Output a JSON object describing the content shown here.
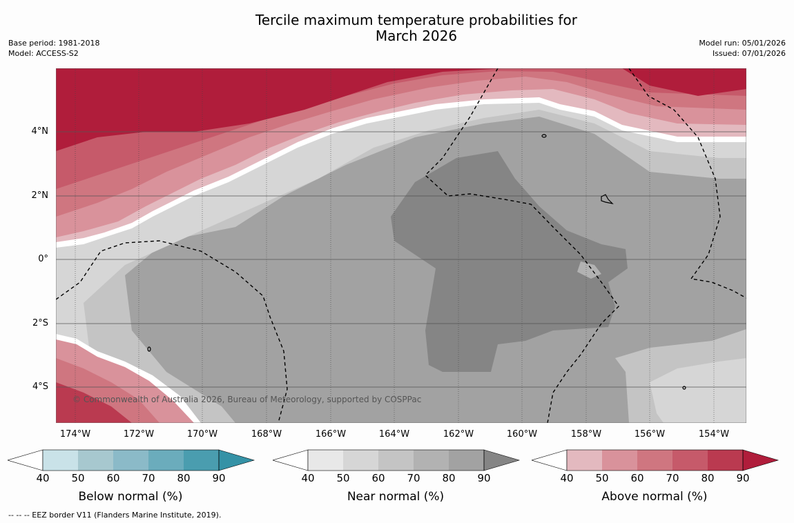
{
  "title_line1": "Tercile maximum temperature probabilities for",
  "title_line2": "March 2026",
  "base_period": "Base period: 1981-2018",
  "model": "Model: ACCESS-S2",
  "model_run": "Model run: 05/01/2026",
  "issued": "Issued: 07/01/2026",
  "copyright": "© Commonwealth of Australia 2026, Bureau of Meteorology, supported by COSPPac",
  "eez_note": "--  --  -- EEZ border V11 (Flanders Marine Institute, 2019).",
  "lat_labels": [
    "4°N",
    "2°N",
    "0°",
    "2°S",
    "4°S"
  ],
  "lon_labels": [
    "174°W",
    "172°W",
    "170°W",
    "168°W",
    "166°W",
    "164°W",
    "162°W",
    "160°W",
    "158°W",
    "156°W",
    "154°W"
  ],
  "colorbars": [
    {
      "label": "Below normal (%)",
      "ticks": [
        "40",
        "50",
        "60",
        "70",
        "80",
        "90"
      ],
      "colors": [
        "#ffffff",
        "#c9e2e8",
        "#a7c8cf",
        "#8bbac8",
        "#6bacbc",
        "#4a9daf",
        "#3592a6"
      ]
    },
    {
      "label": "Near normal (%)",
      "ticks": [
        "40",
        "50",
        "60",
        "70",
        "80",
        "90"
      ],
      "colors": [
        "#ffffff",
        "#e8e8e8",
        "#d6d6d6",
        "#c4c4c4",
        "#b2b2b2",
        "#a2a2a2",
        "#858585"
      ]
    },
    {
      "label": "Above normal (%)",
      "ticks": [
        "40",
        "50",
        "60",
        "70",
        "80",
        "90"
      ],
      "colors": [
        "#ffffff",
        "#e3b9bf",
        "#d9929b",
        "#cf7680",
        "#c65a6a",
        "#ba3a50",
        "#b01d3b"
      ]
    }
  ]
}
